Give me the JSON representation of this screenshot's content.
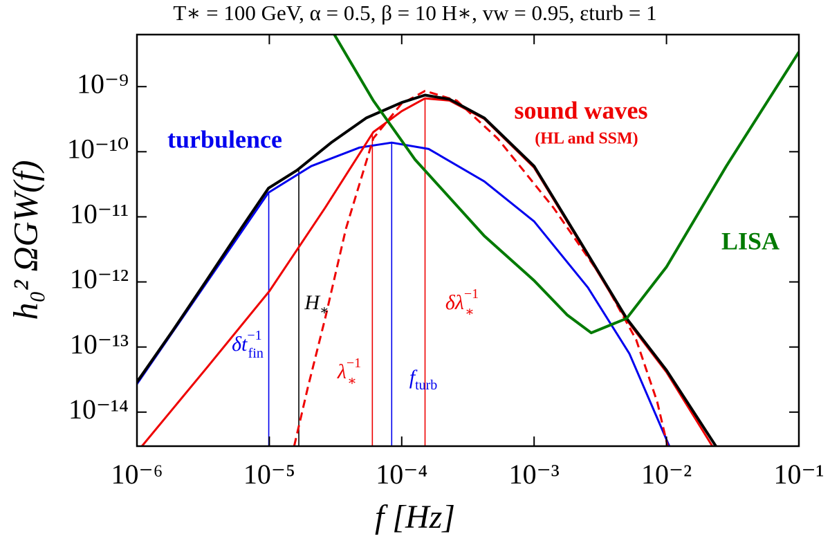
{
  "chart_data": {
    "type": "line",
    "title": "T∗ = 100 GeV, α = 0.5, β = 10 H∗, vw = 0.95, εturb = 1",
    "x_label": "f  [Hz]",
    "y_label": "h₀² ΩGW(f)",
    "log_x": true,
    "log_y": true,
    "xlim": [
      1e-06,
      0.1
    ],
    "ylim": [
      3e-15,
      6.3e-09
    ],
    "xticks": [
      {
        "value": 1e-06,
        "label": "10⁻⁶"
      },
      {
        "value": 1e-05,
        "label": "10⁻⁵"
      },
      {
        "value": 0.0001,
        "label": "10⁻⁴"
      },
      {
        "value": 0.001,
        "label": "10⁻³"
      },
      {
        "value": 0.01,
        "label": "10⁻²"
      },
      {
        "value": 0.1,
        "label": "10⁻¹"
      }
    ],
    "yticks": [
      {
        "value": 1e-14,
        "label": "10⁻¹⁴"
      },
      {
        "value": 1e-13,
        "label": "10⁻¹³"
      },
      {
        "value": 1e-12,
        "label": "10⁻¹²"
      },
      {
        "value": 1e-11,
        "label": "10⁻¹¹"
      },
      {
        "value": 1e-10,
        "label": "10⁻¹⁰"
      },
      {
        "value": 1e-09,
        "label": "10⁻⁹"
      }
    ],
    "series": [
      {
        "color": "#0000ee",
        "width": 3,
        "name": "turbulence",
        "x": [
          1e-06,
          9.85e-06,
          2.07e-05,
          4.8e-05,
          8.4e-05,
          0.00016,
          0.00042,
          0.001,
          0.00255,
          0.00525,
          0.0105
        ],
        "values": [
          2.7e-14,
          2.35e-11,
          6e-11,
          1.16e-10,
          1.38e-10,
          1.1e-10,
          3.5e-11,
          8.5e-12,
          8.2e-13,
          7.9e-14,
          3e-15
        ]
      },
      {
        "color": "#ee0000",
        "width": 3,
        "name": "sound waves",
        "x": [
          1.09e-06,
          3.4e-06,
          1e-05,
          2.64e-05,
          6.1e-05,
          0.0001,
          0.00015,
          0.00023,
          0.00042,
          0.001,
          0.00224,
          0.005,
          0.01,
          0.0222
        ],
        "values": [
          3e-15,
          4.9e-14,
          7.2e-13,
          1.38e-11,
          2e-10,
          4.2e-10,
          6.6e-10,
          6.1e-10,
          3.2e-10,
          5.7e-11,
          3.9e-12,
          2.6e-13,
          4.1e-14,
          3e-15
        ]
      },
      {
        "color": "#ee0000",
        "width": 3,
        "dashed": true,
        "x": [
          1.54e-05,
          1.95e-05,
          2.64e-05,
          3.79e-05,
          6.1e-05,
          9.9e-05,
          0.00015,
          0.00026,
          0.00053,
          0.0014,
          0.00324,
          0.0059,
          0.0085,
          0.0102
        ],
        "values": [
          3e-15,
          2.35e-14,
          2.75e-13,
          6.6e-12,
          1.6e-10,
          5.4e-10,
          8.6e-10,
          6.1e-10,
          1.6e-10,
          1.38e-11,
          1.18e-12,
          1.3e-13,
          1.45e-14,
          3e-15
        ]
      },
      {
        "color": "#000000",
        "width": 4,
        "x": [
          1e-06,
          1.87e-06,
          3.4e-06,
          6.2e-06,
          9.85e-06,
          1.62e-05,
          2.96e-05,
          5.4e-05,
          0.0001,
          0.00015,
          0.00023,
          0.00042,
          0.001,
          0.00224,
          0.005,
          0.01,
          0.0236
        ],
        "values": [
          2.9e-14,
          1.8e-13,
          1.1e-12,
          6.9e-12,
          2.75e-11,
          5.2e-11,
          1.4e-10,
          3.3e-10,
          5.7e-10,
          7.4e-10,
          6.4e-10,
          3.3e-10,
          6e-11,
          4.1e-12,
          2.75e-13,
          4.4e-14,
          3e-15
        ]
      },
      {
        "color": "#007a00",
        "width": 4,
        "name": "LISA",
        "x": [
          3.1e-05,
          6.1e-05,
          0.000126,
          0.00042,
          0.001,
          0.00178,
          0.0027,
          0.005,
          0.01,
          0.0283,
          0.052,
          0.1
        ],
        "values": [
          6.3e-09,
          6.1e-10,
          7.6e-11,
          5.1e-12,
          1.05e-12,
          3.1e-13,
          1.65e-13,
          2.75e-13,
          1.7e-12,
          6e-11,
          4.2e-10,
          3.4e-09
        ]
      }
    ],
    "annotations": [
      "(HL and SSM)"
    ],
    "markers": [
      {
        "main": "δt",
        "sup": "−1",
        "sub": "fin",
        "x": 9.9e-06,
        "y": 2.35e-11,
        "color": "#0000ee"
      },
      {
        "main": "H",
        "sub": "∗",
        "x": 1.67e-05,
        "y": 5.2e-11,
        "color": "#000000"
      },
      {
        "main": "λ",
        "sup": "−1",
        "sub": "∗",
        "x": 6e-05,
        "y": 1.9e-10,
        "color": "#ee0000"
      },
      {
        "main": "f",
        "sub": "turb",
        "x": 8.4e-05,
        "y": 1.38e-10,
        "color": "#0000ee"
      },
      {
        "main": "δλ",
        "sup": "−1",
        "sub": "∗",
        "x": 0.00015,
        "y": 6.6e-10,
        "color": "#ee0000"
      }
    ]
  }
}
